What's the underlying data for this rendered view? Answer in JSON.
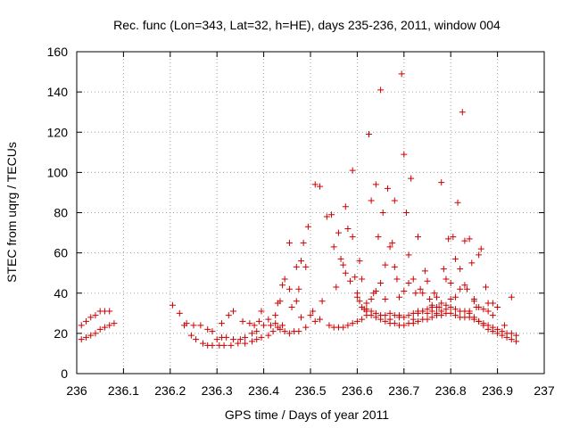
{
  "chart_data": {
    "type": "scatter",
    "title": "Rec. func (Lon=343, Lat=32, h=HE), days 235-236, 2011, window 004",
    "xlabel": "GPS time / Days of year 2011",
    "ylabel": "STEC from uqrg / TECUs",
    "xlim": [
      236,
      237
    ],
    "ylim": [
      0,
      160
    ],
    "xticks": [
      "236",
      "236.1",
      "236.2",
      "236.3",
      "236.4",
      "236.5",
      "236.6",
      "236.7",
      "236.8",
      "236.9",
      "237"
    ],
    "yticks": [
      "0",
      "20",
      "40",
      "60",
      "80",
      "100",
      "120",
      "140",
      "160"
    ],
    "grid": true,
    "marker": "plus",
    "color": "#cc0000",
    "points": [
      [
        236.01,
        24
      ],
      [
        236.02,
        26
      ],
      [
        236.03,
        28
      ],
      [
        236.04,
        29
      ],
      [
        236.05,
        31
      ],
      [
        236.06,
        31
      ],
      [
        236.07,
        31
      ],
      [
        236.01,
        17
      ],
      [
        236.02,
        18
      ],
      [
        236.03,
        19
      ],
      [
        236.04,
        20
      ],
      [
        236.05,
        22
      ],
      [
        236.06,
        23
      ],
      [
        236.07,
        24
      ],
      [
        236.08,
        25
      ],
      [
        236.205,
        34
      ],
      [
        236.22,
        30
      ],
      [
        236.235,
        25
      ],
      [
        236.25,
        24
      ],
      [
        236.265,
        24
      ],
      [
        236.28,
        22
      ],
      [
        236.29,
        21
      ],
      [
        236.31,
        25
      ],
      [
        236.325,
        29
      ],
      [
        236.335,
        31
      ],
      [
        236.355,
        26
      ],
      [
        236.37,
        25
      ],
      [
        236.38,
        24
      ],
      [
        236.39,
        26
      ],
      [
        236.395,
        31
      ],
      [
        236.41,
        27
      ],
      [
        236.425,
        29
      ],
      [
        236.23,
        24
      ],
      [
        236.245,
        19
      ],
      [
        236.255,
        17
      ],
      [
        236.27,
        15
      ],
      [
        236.28,
        14
      ],
      [
        236.29,
        14
      ],
      [
        236.305,
        14
      ],
      [
        236.315,
        14
      ],
      [
        236.33,
        14
      ],
      [
        236.345,
        15
      ],
      [
        236.36,
        15
      ],
      [
        236.375,
        16
      ],
      [
        236.385,
        17
      ],
      [
        236.395,
        18
      ],
      [
        236.41,
        19
      ],
      [
        236.42,
        21
      ],
      [
        236.43,
        23
      ],
      [
        236.445,
        21
      ],
      [
        236.455,
        20
      ],
      [
        236.465,
        21
      ],
      [
        236.475,
        21
      ],
      [
        236.49,
        23
      ],
      [
        236.3,
        17
      ],
      [
        236.31,
        18
      ],
      [
        236.32,
        18
      ],
      [
        236.335,
        17
      ],
      [
        236.35,
        17
      ],
      [
        236.36,
        18
      ],
      [
        236.375,
        20
      ],
      [
        236.385,
        21
      ],
      [
        236.4,
        24
      ],
      [
        236.415,
        24
      ],
      [
        236.425,
        25
      ],
      [
        236.435,
        22
      ],
      [
        236.44,
        24
      ],
      [
        236.43,
        35
      ],
      [
        236.435,
        36
      ],
      [
        236.44,
        44
      ],
      [
        236.445,
        47
      ],
      [
        236.455,
        42
      ],
      [
        236.46,
        33
      ],
      [
        236.47,
        36
      ],
      [
        236.475,
        42
      ],
      [
        236.48,
        28
      ],
      [
        236.49,
        53
      ],
      [
        236.5,
        29
      ],
      [
        236.505,
        31
      ],
      [
        236.51,
        26
      ],
      [
        236.52,
        27
      ],
      [
        236.525,
        36
      ],
      [
        236.54,
        24
      ],
      [
        236.455,
        65
      ],
      [
        236.47,
        53
      ],
      [
        236.48,
        56
      ],
      [
        236.485,
        65
      ],
      [
        236.495,
        73
      ],
      [
        236.51,
        94
      ],
      [
        236.52,
        93
      ],
      [
        236.535,
        78
      ],
      [
        236.545,
        79
      ],
      [
        236.55,
        63
      ],
      [
        236.555,
        43
      ],
      [
        236.56,
        70
      ],
      [
        236.565,
        57
      ],
      [
        236.57,
        54
      ],
      [
        236.575,
        50
      ],
      [
        236.575,
        83
      ],
      [
        236.58,
        72
      ],
      [
        236.585,
        46
      ],
      [
        236.59,
        101
      ],
      [
        236.59,
        68
      ],
      [
        236.595,
        48
      ],
      [
        236.6,
        40
      ],
      [
        236.605,
        56
      ],
      [
        236.55,
        23
      ],
      [
        236.56,
        23
      ],
      [
        236.57,
        23
      ],
      [
        236.58,
        24
      ],
      [
        236.59,
        25
      ],
      [
        236.6,
        26
      ],
      [
        236.61,
        27
      ],
      [
        236.62,
        29
      ],
      [
        236.63,
        29
      ],
      [
        236.64,
        28
      ],
      [
        236.65,
        27
      ],
      [
        236.66,
        26
      ],
      [
        236.67,
        25
      ],
      [
        236.68,
        25
      ],
      [
        236.69,
        24
      ],
      [
        236.7,
        24
      ],
      [
        236.71,
        25
      ],
      [
        236.72,
        25
      ],
      [
        236.73,
        26
      ],
      [
        236.74,
        27
      ],
      [
        236.75,
        27
      ],
      [
        236.76,
        28
      ],
      [
        236.77,
        29
      ],
      [
        236.78,
        29
      ],
      [
        236.79,
        30
      ],
      [
        236.8,
        30
      ],
      [
        236.81,
        29
      ],
      [
        236.82,
        28
      ],
      [
        236.83,
        28
      ],
      [
        236.84,
        28
      ],
      [
        236.85,
        27
      ],
      [
        236.86,
        26
      ],
      [
        236.87,
        25
      ],
      [
        236.88,
        24
      ],
      [
        236.89,
        23
      ],
      [
        236.9,
        22
      ],
      [
        236.91,
        21
      ],
      [
        236.92,
        20
      ],
      [
        236.93,
        20
      ],
      [
        236.94,
        19
      ],
      [
        236.6,
        38
      ],
      [
        236.605,
        36
      ],
      [
        236.61,
        47
      ],
      [
        236.615,
        32
      ],
      [
        236.62,
        31
      ],
      [
        236.625,
        119
      ],
      [
        236.63,
        86
      ],
      [
        236.635,
        40
      ],
      [
        236.64,
        94
      ],
      [
        236.645,
        68
      ],
      [
        236.65,
        141
      ],
      [
        236.655,
        80
      ],
      [
        236.66,
        54
      ],
      [
        236.665,
        92
      ],
      [
        236.67,
        63
      ],
      [
        236.675,
        65
      ],
      [
        236.68,
        86
      ],
      [
        236.685,
        47
      ],
      [
        236.69,
        38
      ],
      [
        236.695,
        149
      ],
      [
        236.7,
        109
      ],
      [
        236.705,
        80
      ],
      [
        236.71,
        59
      ],
      [
        236.715,
        97
      ],
      [
        236.72,
        47
      ],
      [
        236.725,
        40
      ],
      [
        236.73,
        68
      ],
      [
        236.735,
        42
      ],
      [
        236.74,
        40
      ],
      [
        236.745,
        51
      ],
      [
        236.75,
        46
      ],
      [
        236.755,
        37
      ],
      [
        236.76,
        34
      ],
      [
        236.765,
        40
      ],
      [
        236.77,
        38
      ],
      [
        236.775,
        33
      ],
      [
        236.78,
        95
      ],
      [
        236.785,
        52
      ],
      [
        236.79,
        47
      ],
      [
        236.795,
        67
      ],
      [
        236.8,
        45
      ],
      [
        236.805,
        68
      ],
      [
        236.81,
        57
      ],
      [
        236.815,
        85
      ],
      [
        236.82,
        52
      ],
      [
        236.825,
        130
      ],
      [
        236.83,
        66
      ],
      [
        236.835,
        42
      ],
      [
        236.84,
        67
      ],
      [
        236.845,
        55
      ],
      [
        236.85,
        37
      ],
      [
        236.855,
        33
      ],
      [
        236.86,
        59
      ],
      [
        236.865,
        62
      ],
      [
        236.875,
        43
      ],
      [
        236.88,
        35
      ],
      [
        236.89,
        35
      ],
      [
        236.9,
        33
      ],
      [
        236.915,
        24
      ],
      [
        236.93,
        38
      ],
      [
        236.61,
        33
      ],
      [
        236.62,
        35
      ],
      [
        236.63,
        37
      ],
      [
        236.64,
        41
      ],
      [
        236.65,
        45
      ],
      [
        236.66,
        37
      ],
      [
        236.67,
        30
      ],
      [
        236.68,
        53
      ],
      [
        236.69,
        29
      ],
      [
        236.7,
        41
      ],
      [
        236.71,
        45
      ],
      [
        236.72,
        27
      ],
      [
        236.73,
        31
      ],
      [
        236.74,
        31
      ],
      [
        236.75,
        30
      ],
      [
        236.76,
        33
      ],
      [
        236.77,
        33
      ],
      [
        236.78,
        35
      ],
      [
        236.79,
        34
      ],
      [
        236.8,
        37
      ],
      [
        236.81,
        38
      ],
      [
        236.82,
        42
      ],
      [
        236.83,
        44
      ],
      [
        236.84,
        31
      ],
      [
        236.85,
        36
      ],
      [
        236.86,
        33
      ],
      [
        236.87,
        32
      ],
      [
        236.88,
        31
      ],
      [
        236.89,
        29
      ],
      [
        236.62,
        32
      ],
      [
        236.63,
        31
      ],
      [
        236.64,
        30
      ],
      [
        236.65,
        29
      ],
      [
        236.66,
        29
      ],
      [
        236.67,
        27
      ],
      [
        236.68,
        29
      ],
      [
        236.69,
        28
      ],
      [
        236.7,
        28
      ],
      [
        236.71,
        29
      ],
      [
        236.72,
        30
      ],
      [
        236.73,
        30
      ],
      [
        236.74,
        31
      ],
      [
        236.75,
        32
      ],
      [
        236.76,
        31
      ],
      [
        236.77,
        30
      ],
      [
        236.78,
        31
      ],
      [
        236.79,
        32
      ],
      [
        236.8,
        33
      ],
      [
        236.81,
        32
      ],
      [
        236.82,
        31
      ],
      [
        236.83,
        31
      ],
      [
        236.84,
        30
      ],
      [
        236.85,
        28
      ],
      [
        236.86,
        26
      ],
      [
        236.87,
        24
      ],
      [
        236.88,
        22
      ],
      [
        236.89,
        21
      ],
      [
        236.9,
        20
      ],
      [
        236.91,
        19
      ],
      [
        236.92,
        18
      ],
      [
        236.93,
        17
      ],
      [
        236.94,
        16
      ]
    ]
  }
}
